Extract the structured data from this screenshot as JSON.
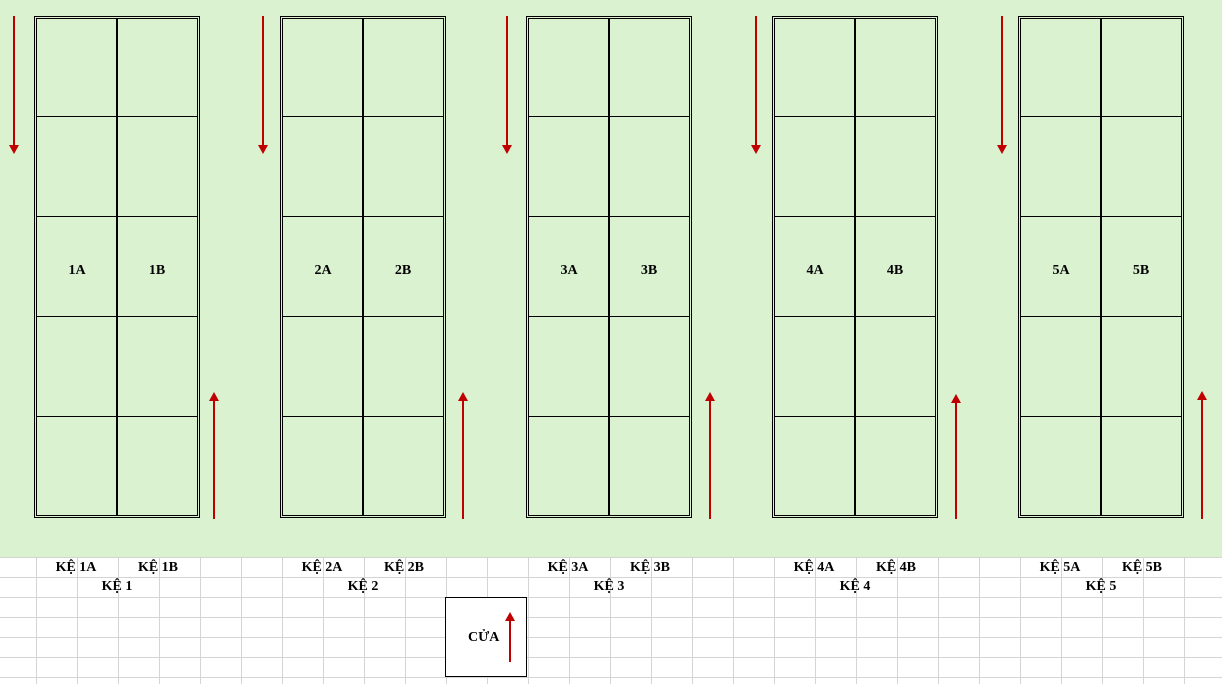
{
  "shelves": [
    {
      "left_cell": "1A",
      "right_cell": "1B",
      "left_label": "KỆ 1A",
      "right_label": "KỆ 1B",
      "name": "KỆ 1"
    },
    {
      "left_cell": "2A",
      "right_cell": "2B",
      "left_label": "KỆ 2A",
      "right_label": "KỆ 2B",
      "name": "KỆ 2"
    },
    {
      "left_cell": "3A",
      "right_cell": "3B",
      "left_label": "KỆ 3A",
      "right_label": "KỆ 3B",
      "name": "KỆ 3"
    },
    {
      "left_cell": "4A",
      "right_cell": "4B",
      "left_label": "KỆ 4A",
      "right_label": "KỆ 4B",
      "name": "KỆ 4"
    },
    {
      "left_cell": "5A",
      "right_cell": "5B",
      "left_label": "KỆ 5A",
      "right_label": "KỆ 5B",
      "name": "KỆ 5"
    }
  ],
  "door": {
    "label": "CỬA"
  },
  "colors": {
    "floor": "#daf2d0",
    "arrow": "#c00000",
    "line": "#000000"
  }
}
